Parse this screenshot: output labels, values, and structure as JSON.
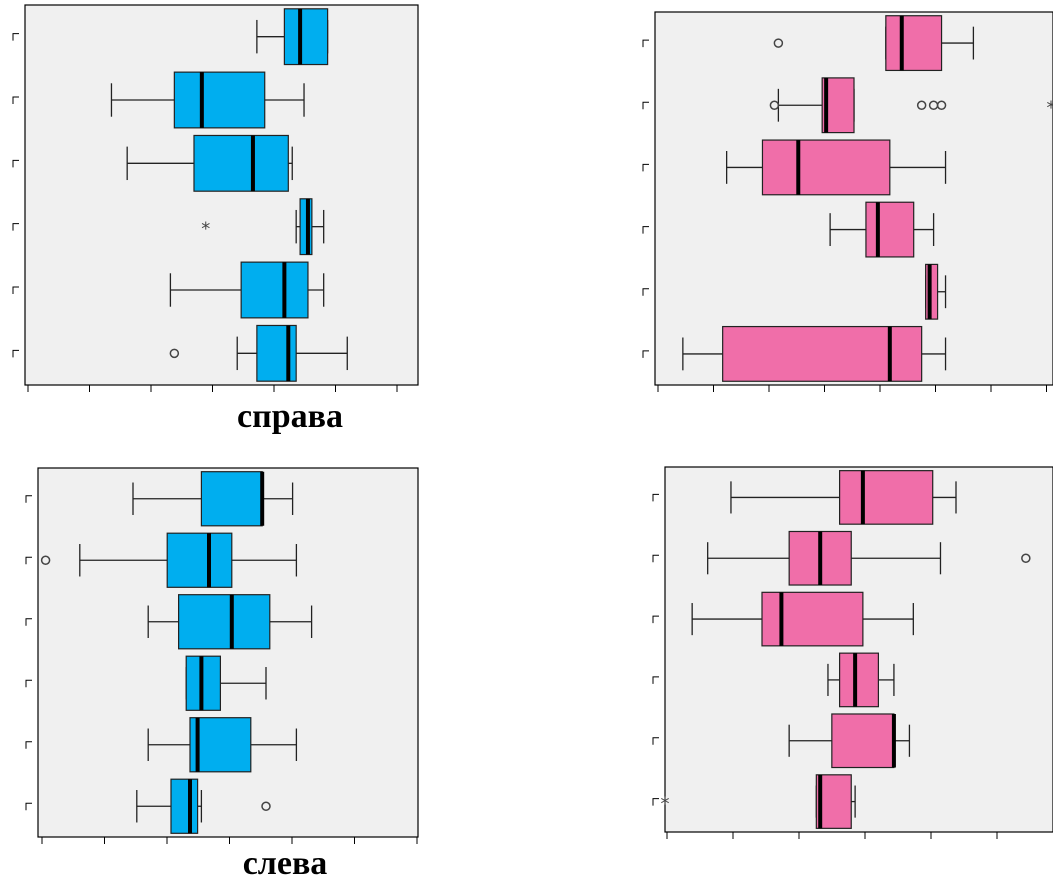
{
  "colors": {
    "blue": "#00aeef",
    "pink": "#f06ea9",
    "plot_bg": "#f0f0f0",
    "outline": "#222222"
  },
  "captions": {
    "top": "справа",
    "bottom": "слева"
  },
  "chart_data": [
    {
      "type": "boxplot",
      "orientation": "horizontal",
      "color": "blue",
      "xlim": [
        0,
        100
      ],
      "groups": [
        {
          "whisker_low": 59,
          "q1": 66,
          "median": 70,
          "q3": 77,
          "whisker_high": 77,
          "outliers": []
        },
        {
          "whisker_low": 22,
          "q1": 38,
          "median": 45,
          "q3": 61,
          "whisker_high": 71,
          "outliers": []
        },
        {
          "whisker_low": 26,
          "q1": 43,
          "median": 58,
          "q3": 67,
          "whisker_high": 68,
          "outliers": []
        },
        {
          "whisker_low": 69,
          "q1": 70,
          "median": 72,
          "q3": 73,
          "whisker_high": 76,
          "outliers": [],
          "extremes": [
            46
          ]
        },
        {
          "whisker_low": 37,
          "q1": 55,
          "median": 66,
          "q3": 72,
          "whisker_high": 76,
          "outliers": []
        },
        {
          "whisker_low": 54,
          "q1": 59,
          "median": 67,
          "q3": 69,
          "whisker_high": 82,
          "outliers": [
            38
          ]
        }
      ]
    },
    {
      "type": "boxplot",
      "orientation": "horizontal",
      "color": "pink",
      "xlim": [
        0,
        100
      ],
      "groups": [
        {
          "whisker_low": 58,
          "q1": 58,
          "median": 62,
          "q3": 72,
          "whisker_high": 80,
          "outliers": [
            31
          ]
        },
        {
          "whisker_low": 31,
          "q1": 42,
          "median": 43,
          "q3": 50,
          "whisker_high": 50,
          "outliers": [
            30,
            67,
            70,
            72
          ],
          "extremes": [
            100
          ]
        },
        {
          "whisker_low": 18,
          "q1": 27,
          "median": 36,
          "q3": 59,
          "whisker_high": 73,
          "outliers": []
        },
        {
          "whisker_low": 44,
          "q1": 53,
          "median": 56,
          "q3": 65,
          "whisker_high": 70,
          "outliers": []
        },
        {
          "whisker_low": 68,
          "q1": 68,
          "median": 69,
          "q3": 71,
          "whisker_high": 73,
          "outliers": []
        },
        {
          "whisker_low": 7,
          "q1": 17,
          "median": 59,
          "q3": 67,
          "whisker_high": 73,
          "outliers": []
        }
      ]
    },
    {
      "type": "boxplot",
      "orientation": "horizontal",
      "color": "blue",
      "xlim": [
        0,
        100
      ],
      "groups": [
        {
          "whisker_low": 25,
          "q1": 43,
          "median": 59,
          "q3": 59,
          "whisker_high": 67,
          "outliers": []
        },
        {
          "whisker_low": 11,
          "q1": 34,
          "median": 45,
          "q3": 51,
          "whisker_high": 68,
          "outliers": [
            2
          ]
        },
        {
          "whisker_low": 29,
          "q1": 37,
          "median": 51,
          "q3": 61,
          "whisker_high": 72,
          "outliers": []
        },
        {
          "whisker_low": 39,
          "q1": 39,
          "median": 43,
          "q3": 48,
          "whisker_high": 60,
          "outliers": []
        },
        {
          "whisker_low": 29,
          "q1": 40,
          "median": 42,
          "q3": 56,
          "whisker_high": 68,
          "outliers": []
        },
        {
          "whisker_low": 26,
          "q1": 35,
          "median": 40,
          "q3": 42,
          "whisker_high": 43,
          "outliers": [
            60
          ]
        }
      ]
    },
    {
      "type": "boxplot",
      "orientation": "horizontal",
      "color": "pink",
      "xlim": [
        0,
        100
      ],
      "groups": [
        {
          "whisker_low": 17,
          "q1": 45,
          "median": 51,
          "q3": 69,
          "whisker_high": 75,
          "outliers": []
        },
        {
          "whisker_low": 11,
          "q1": 32,
          "median": 40,
          "q3": 48,
          "whisker_high": 71,
          "outliers": [
            93
          ]
        },
        {
          "whisker_low": 7,
          "q1": 25,
          "median": 30,
          "q3": 51,
          "whisker_high": 64,
          "outliers": []
        },
        {
          "whisker_low": 42,
          "q1": 45,
          "median": 49,
          "q3": 55,
          "whisker_high": 59,
          "outliers": []
        },
        {
          "whisker_low": 32,
          "q1": 43,
          "median": 59,
          "q3": 59,
          "whisker_high": 63,
          "outliers": []
        },
        {
          "whisker_low": 39,
          "q1": 39,
          "median": 40,
          "q3": 48,
          "whisker_high": 49,
          "outliers": [],
          "extremes": [
            0
          ]
        }
      ]
    }
  ]
}
